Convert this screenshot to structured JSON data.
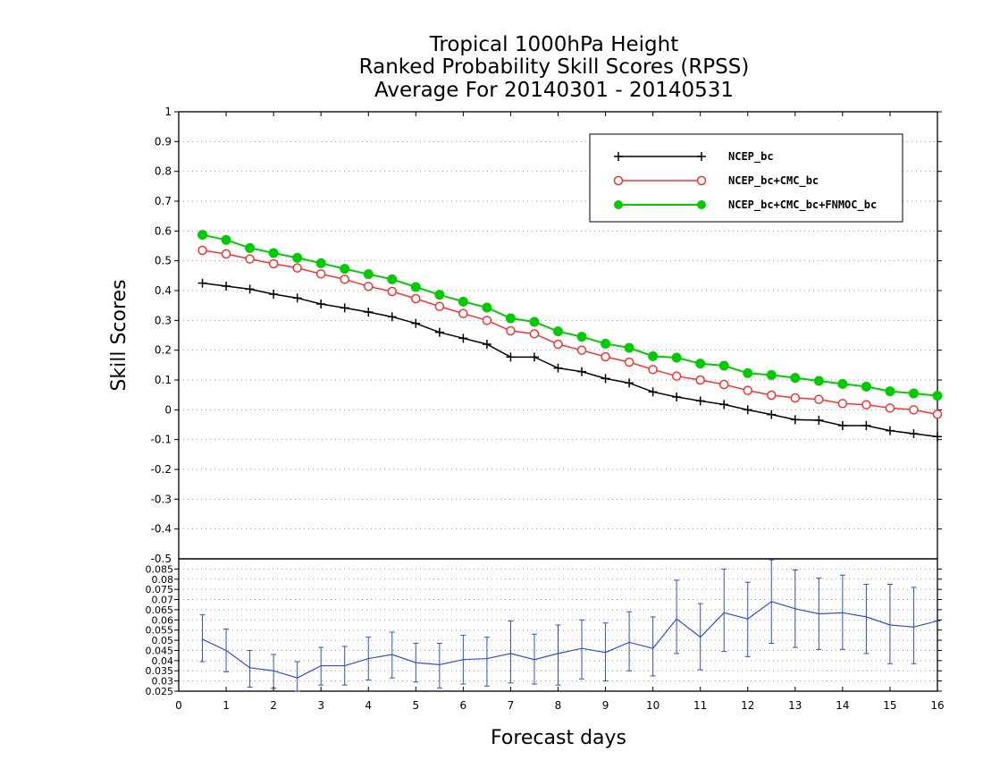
{
  "chart_data": [
    {
      "type": "line",
      "title_lines": [
        "Tropical 1000hPa Height",
        "Ranked Probability Skill Scores (RPSS)",
        "Average For 20140301 - 20140531"
      ],
      "xlabel": "Forecast days",
      "ylabel": "Skill Scores",
      "xlim": [
        0,
        16
      ],
      "ylim": [
        -0.5,
        1
      ],
      "x_ticks": [
        "0",
        "1",
        "2",
        "3",
        "4",
        "5",
        "6",
        "7",
        "8",
        "9",
        "10",
        "11",
        "12",
        "13",
        "14",
        "15",
        "16"
      ],
      "y_ticks": [
        "1",
        "0.9",
        "0.8",
        "0.7",
        "0.6",
        "0.5",
        "0.4",
        "0.3",
        "0.2",
        "0.1",
        "0",
        "-0.1",
        "-0.2",
        "-0.3",
        "-0.4"
      ],
      "grid": true,
      "legend_position": "top-right",
      "x": [
        0.5,
        1,
        1.5,
        2,
        2.5,
        3,
        3.5,
        4,
        4.5,
        5,
        5.5,
        6,
        6.5,
        7,
        7.5,
        8,
        8.5,
        9,
        9.5,
        10,
        10.5,
        11,
        11.5,
        12,
        12.5,
        13,
        13.5,
        14,
        14.5,
        15,
        15.5,
        16
      ],
      "series": [
        {
          "name": "NCEP_bc",
          "color": "#000000",
          "marker": "plus",
          "values": [
            0.425,
            0.415,
            0.405,
            0.388,
            0.375,
            0.355,
            0.342,
            0.328,
            0.312,
            0.29,
            0.26,
            0.24,
            0.22,
            0.177,
            0.177,
            0.14,
            0.128,
            0.105,
            0.09,
            0.06,
            0.043,
            0.03,
            0.018,
            0.0,
            -0.016,
            -0.033,
            -0.035,
            -0.053,
            -0.053,
            -0.07,
            -0.08,
            -0.09
          ]
        },
        {
          "name": "NCEP_bc+CMC_bc",
          "color": "#ff3030",
          "marker": "open-circle",
          "values": [
            0.535,
            0.523,
            0.506,
            0.49,
            0.476,
            0.456,
            0.438,
            0.414,
            0.397,
            0.373,
            0.347,
            0.323,
            0.3,
            0.265,
            0.255,
            0.22,
            0.2,
            0.178,
            0.16,
            0.135,
            0.113,
            0.1,
            0.085,
            0.065,
            0.049,
            0.04,
            0.035,
            0.021,
            0.017,
            0.006,
            0.0,
            -0.015
          ]
        },
        {
          "name": "NCEP_bc+CMC_bc+FNMOC_bc",
          "color": "#00cc00",
          "marker": "filled-circle",
          "values": [
            0.587,
            0.57,
            0.543,
            0.526,
            0.51,
            0.492,
            0.473,
            0.455,
            0.438,
            0.412,
            0.386,
            0.363,
            0.343,
            0.307,
            0.295,
            0.263,
            0.245,
            0.222,
            0.208,
            0.18,
            0.175,
            0.155,
            0.148,
            0.123,
            0.117,
            0.107,
            0.097,
            0.087,
            0.078,
            0.062,
            0.055,
            0.047
          ]
        }
      ]
    },
    {
      "type": "line",
      "ylim": [
        0.025,
        0.09
      ],
      "y_ticks": [
        "0.085",
        "0.08",
        "0.075",
        "0.07",
        "0.065",
        "0.06",
        "0.055",
        "0.05",
        "0.045",
        "0.04",
        "0.035",
        "0.03",
        "0.025"
      ],
      "top_tick_label": "-0.5",
      "x": [
        0.5,
        1,
        1.5,
        2,
        2.5,
        3,
        3.5,
        4,
        4.5,
        5,
        5.5,
        6,
        6.5,
        7,
        7.5,
        8,
        8.5,
        9,
        9.5,
        10,
        10.5,
        11,
        11.5,
        12,
        12.5,
        13,
        13.5,
        14,
        14.5,
        15,
        15.5,
        16
      ],
      "series": [
        {
          "color": "#3050d0",
          "values": [
            0.0505,
            0.045,
            0.0365,
            0.035,
            0.0315,
            0.0375,
            0.0375,
            0.041,
            0.043,
            0.039,
            0.038,
            0.0405,
            0.041,
            0.0435,
            0.0405,
            0.0435,
            0.046,
            0.044,
            0.049,
            0.046,
            0.0605,
            0.0515,
            0.0635,
            0.0605,
            0.069,
            0.0655,
            0.063,
            0.0635,
            0.0615,
            0.0575,
            0.0565,
            0.0595
          ],
          "error_low": [
            0.0395,
            0.0345,
            0.027,
            0.0265,
            0.0225,
            0.028,
            0.028,
            0.0305,
            0.0315,
            0.0295,
            0.0265,
            0.0285,
            0.0275,
            0.029,
            0.0285,
            0.028,
            0.031,
            0.03,
            0.035,
            0.0325,
            0.0435,
            0.0355,
            0.0445,
            0.042,
            0.0485,
            0.0465,
            0.0455,
            0.0455,
            0.0435,
            0.0385,
            0.0385,
            0.0595
          ],
          "error_high": [
            0.0625,
            0.0555,
            0.045,
            0.043,
            0.0395,
            0.0465,
            0.047,
            0.0515,
            0.054,
            0.0485,
            0.0485,
            0.0525,
            0.0515,
            0.0595,
            0.053,
            0.0575,
            0.06,
            0.0585,
            0.064,
            0.0615,
            0.0795,
            0.068,
            0.085,
            0.0785,
            0.0895,
            0.0845,
            0.0805,
            0.082,
            0.0775,
            0.0775,
            0.076,
            0.0595
          ]
        }
      ]
    }
  ]
}
